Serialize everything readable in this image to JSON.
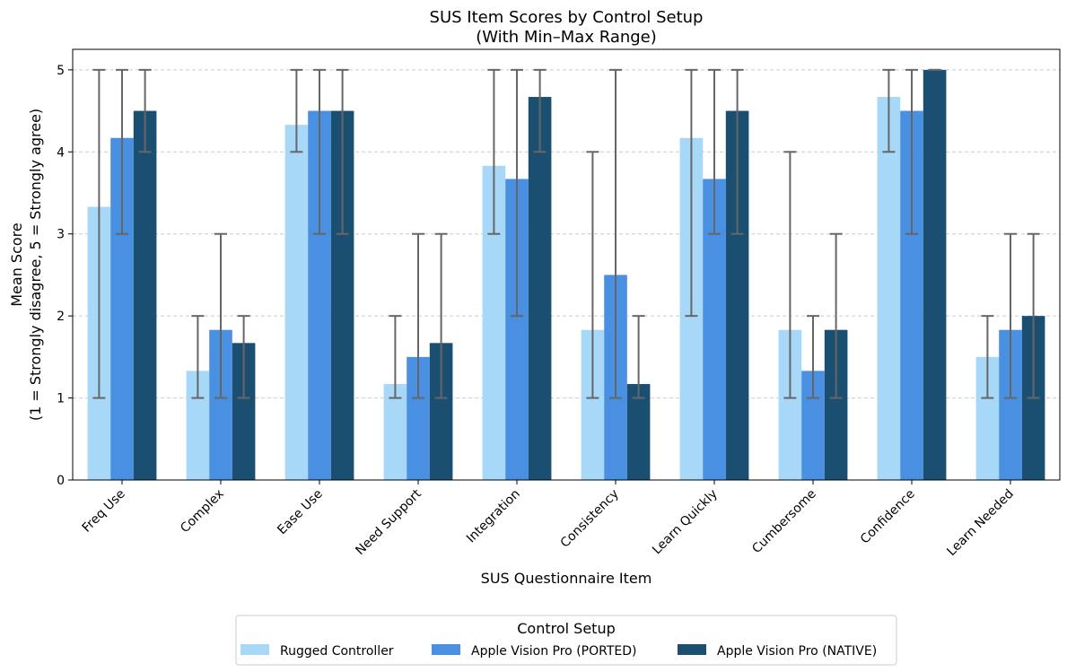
{
  "chart_data": {
    "type": "bar",
    "title": "SUS Item Scores by Control Setup",
    "subtitle": "(With Min–Max Range)",
    "xlabel": "SUS Questionnaire Item",
    "ylabel": "Mean Score",
    "ylabel_sub": "(1 = Strongly disagree, 5 = Strongly agree)",
    "ylim": [
      0,
      5.25
    ],
    "yticks": [
      0,
      1,
      2,
      3,
      4,
      5
    ],
    "grid": "horizontal dashed",
    "legend": {
      "title": "Control Setup",
      "placement": "bottom-center"
    },
    "categories": [
      "Freq Use",
      "Complex",
      "Ease Use",
      "Need Support",
      "Integration",
      "Consistency",
      "Learn Quickly",
      "Cumbersome",
      "Confidence",
      "Learn Needed"
    ],
    "series": [
      {
        "name": "Rugged Controller",
        "color": "#a8d8f8",
        "values": [
          3.33,
          1.33,
          4.33,
          1.17,
          3.83,
          1.83,
          4.17,
          1.83,
          4.67,
          1.5
        ],
        "min": [
          1,
          1,
          4,
          1,
          3,
          1,
          2,
          1,
          4,
          1
        ],
        "max": [
          5,
          2,
          5,
          2,
          5,
          4,
          5,
          4,
          5,
          2
        ]
      },
      {
        "name": "Apple Vision Pro (PORTED)",
        "color": "#4a90e2",
        "values": [
          4.17,
          1.83,
          4.5,
          1.5,
          3.67,
          2.5,
          3.67,
          1.33,
          4.5,
          1.83
        ],
        "min": [
          3,
          1,
          3,
          1,
          2,
          1,
          3,
          1,
          3,
          1
        ],
        "max": [
          5,
          3,
          5,
          3,
          5,
          5,
          5,
          2,
          5,
          3
        ]
      },
      {
        "name": "Apple Vision Pro (NATIVE)",
        "color": "#1b4f72",
        "values": [
          4.5,
          1.67,
          4.5,
          1.67,
          4.67,
          1.17,
          4.5,
          1.83,
          5.0,
          2.0
        ],
        "min": [
          4,
          1,
          3,
          1,
          4,
          1,
          3,
          1,
          5,
          1
        ],
        "max": [
          5,
          2,
          5,
          3,
          5,
          2,
          5,
          3,
          5,
          3
        ]
      }
    ],
    "errorbar_color": "#666666"
  }
}
